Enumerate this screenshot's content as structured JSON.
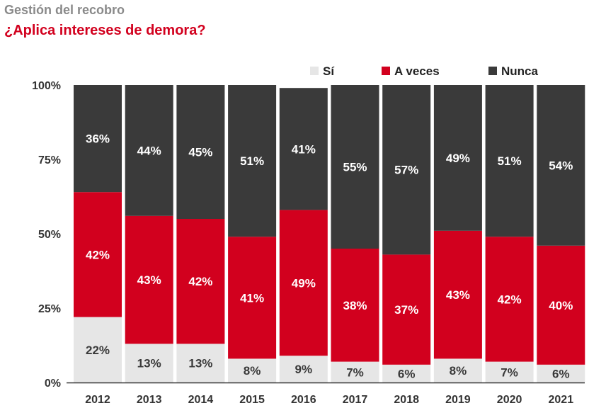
{
  "header": {
    "kicker": "Gestión del recobro",
    "title": "¿Aplica intereses de demora?"
  },
  "chart_data": {
    "type": "bar",
    "stacked": true,
    "title": "¿Aplica intereses de demora?",
    "subtitle": "Gestión del recobro",
    "categories": [
      "2012",
      "2013",
      "2014",
      "2015",
      "2016",
      "2017",
      "2018",
      "2019",
      "2020",
      "2021"
    ],
    "series": [
      {
        "name": "Sí",
        "color": "#e6e6e6",
        "label_color": "#3a3a3a",
        "values": [
          22,
          13,
          13,
          8,
          9,
          7,
          6,
          8,
          7,
          6
        ]
      },
      {
        "name": "A veces",
        "color": "#d2001e",
        "label_color": "#ffffff",
        "values": [
          42,
          43,
          42,
          41,
          49,
          38,
          37,
          43,
          42,
          40
        ]
      },
      {
        "name": "Nunca",
        "color": "#3a3a3a",
        "label_color": "#ffffff",
        "values": [
          36,
          44,
          45,
          51,
          41,
          55,
          57,
          49,
          51,
          54
        ]
      }
    ],
    "value_suffix": "%",
    "y_ticks": [
      "0%",
      "25%",
      "50%",
      "75%",
      "100%"
    ],
    "ylim": [
      0,
      100
    ],
    "legend_position": "top-right",
    "grid": false
  }
}
